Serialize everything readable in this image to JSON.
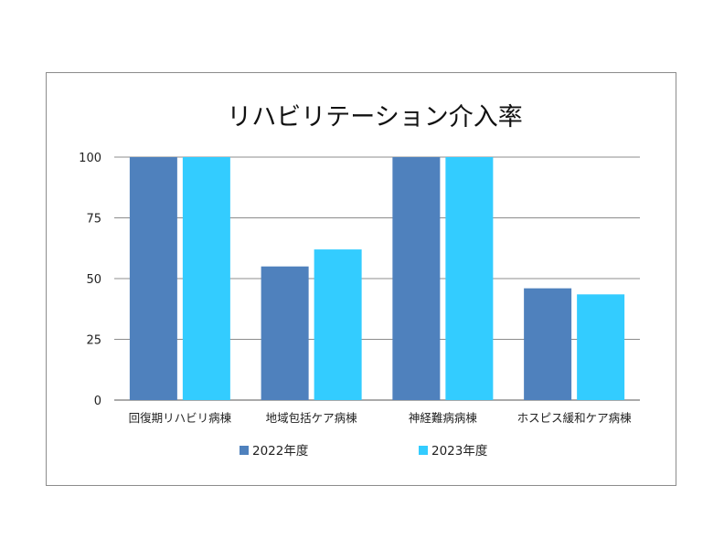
{
  "chart_data": {
    "type": "bar",
    "title": "リハビリテーション介入率",
    "categories": [
      "回復期リハビリ病棟",
      "地域包括ケア病棟",
      "神経難病病棟",
      "ホスピス緩和ケア病棟"
    ],
    "series": [
      {
        "name": "2022年度",
        "color": "#4f81bd",
        "values": [
          100,
          55,
          100,
          46
        ]
      },
      {
        "name": "2023年度",
        "color": "#33ccff",
        "values": [
          100,
          62,
          100,
          43.5
        ]
      }
    ],
    "yticks": [
      "0",
      "25",
      "50",
      "75",
      "100"
    ],
    "ylim": [
      0,
      100
    ],
    "grid": true,
    "legend_position": "bottom"
  }
}
